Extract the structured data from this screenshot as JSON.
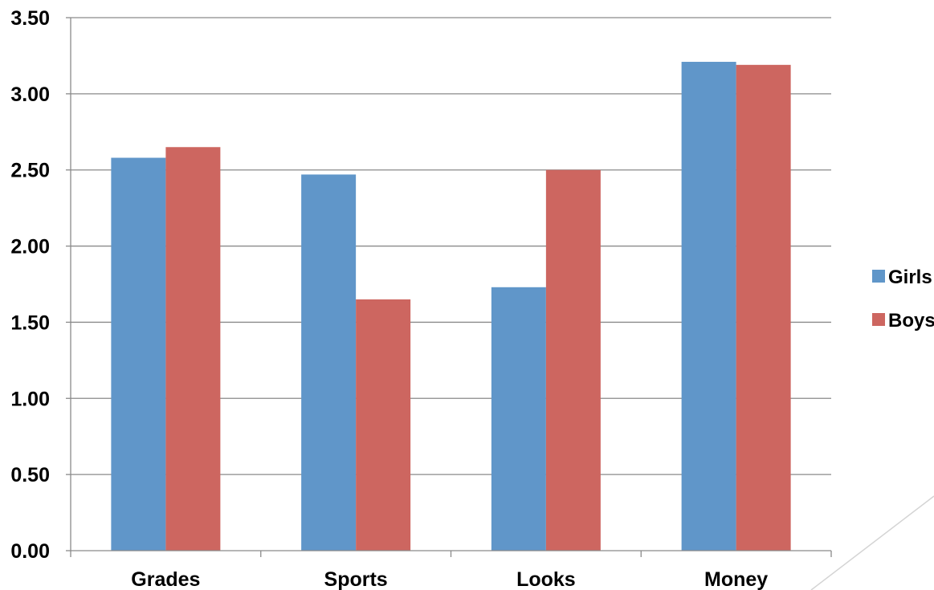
{
  "chart_data": {
    "type": "bar",
    "categories": [
      "Grades",
      "Sports",
      "Looks",
      "Money"
    ],
    "series": [
      {
        "name": "Girls",
        "color": "#6096C9",
        "values": [
          2.58,
          2.47,
          1.73,
          3.21
        ]
      },
      {
        "name": "Boys",
        "color": "#CD6660",
        "values": [
          2.65,
          1.65,
          2.5,
          3.19
        ]
      }
    ],
    "ylim": [
      0,
      3.5
    ],
    "yticks": [
      "0.00",
      "0.50",
      "1.00",
      "1.50",
      "2.00",
      "2.50",
      "3.00",
      "3.50"
    ],
    "grid": true,
    "legend": "right"
  }
}
